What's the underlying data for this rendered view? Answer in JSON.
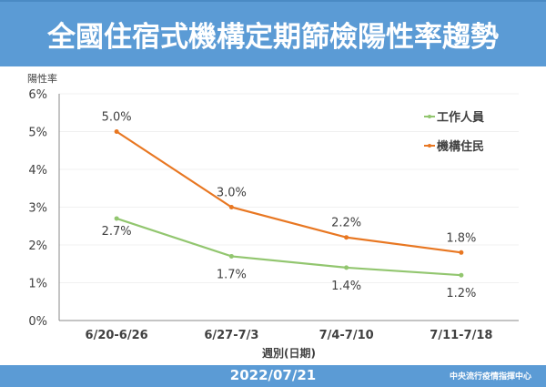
{
  "header": {
    "title": "全國住宿式機構定期篩檢陽性率趨勢"
  },
  "footer": {
    "date": "2022/07/21",
    "org": "中央流行疫情指揮中心"
  },
  "chart_data": {
    "type": "line",
    "title": "全國住宿式機構定期篩檢陽性率趨勢",
    "ylabel": "陽性率",
    "xlabel": "週別(日期)",
    "categories": [
      "6/20-6/26",
      "6/27-7/3",
      "7/4-7/10",
      "7/11-7/18"
    ],
    "ylim": [
      0,
      6
    ],
    "yticks": [
      "0%",
      "1%",
      "2%",
      "3%",
      "4%",
      "5%",
      "6%"
    ],
    "grid": true,
    "legend": "right",
    "series": [
      {
        "name": "工作人員",
        "values": [
          2.7,
          1.7,
          1.4,
          1.2
        ],
        "labels": [
          "2.7%",
          "1.7%",
          "1.4%",
          "1.2%"
        ],
        "color": "#92c66f"
      },
      {
        "name": "機構住民",
        "values": [
          5.0,
          3.0,
          2.2,
          1.8
        ],
        "labels": [
          "5.0%",
          "3.0%",
          "2.2%",
          "1.8%"
        ],
        "color": "#e87722"
      }
    ]
  }
}
